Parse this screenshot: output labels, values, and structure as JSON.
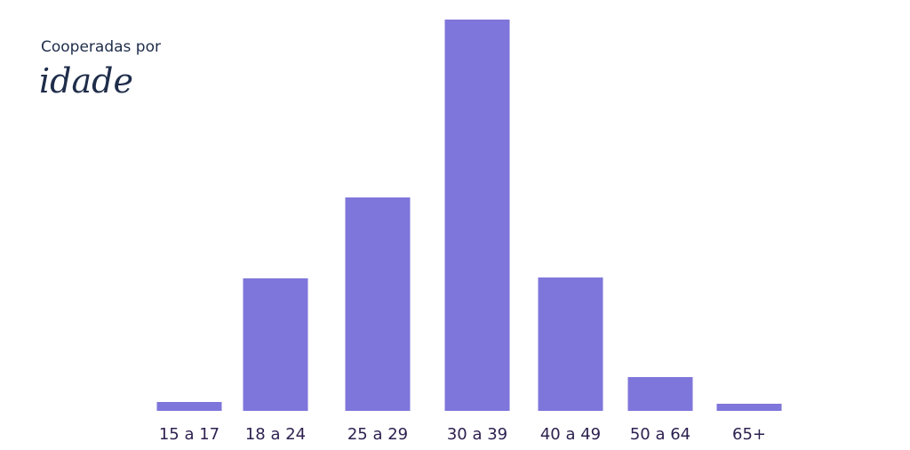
{
  "chart_data": {
    "type": "bar",
    "title": "Cooperadas por",
    "title_emphasis": "idade",
    "categories": [
      "15 a 17",
      "18 a 24",
      "25 a 29",
      "30 a 39",
      "40 a 49",
      "50 a 64",
      "65+"
    ],
    "values": [
      10,
      149,
      240,
      440,
      150,
      38,
      8
    ],
    "color": "#7f76db",
    "ylim": [
      0,
      440
    ],
    "grid": false
  }
}
